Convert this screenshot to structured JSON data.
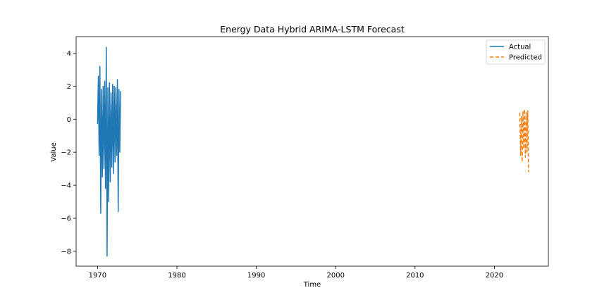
{
  "chart_data": {
    "type": "line",
    "title": "Energy Data Hybrid ARIMA-LSTM Forecast",
    "xlabel": "Time",
    "ylabel": "Value",
    "xlim": [
      1967.3,
      2026.8
    ],
    "ylim": [
      -8.9,
      5.0
    ],
    "x_ticks": [
      1970,
      1980,
      1990,
      2000,
      2010,
      2020
    ],
    "x_tick_labels": [
      "1970",
      "1980",
      "1990",
      "2000",
      "2010",
      "2020"
    ],
    "y_ticks": [
      4,
      2,
      0,
      -2,
      -4,
      -6,
      -8
    ],
    "y_tick_labels": [
      "4",
      "2",
      "0",
      "−2",
      "−4",
      "−6",
      "−8"
    ],
    "grid": false,
    "legend_position": "top-right",
    "series": [
      {
        "name": "Actual",
        "color": "#1f77b4",
        "style": "solid",
        "x": [
          1970.0,
          1970.1,
          1970.2,
          1970.3,
          1970.4,
          1970.5,
          1970.6,
          1970.7,
          1970.8,
          1970.9,
          1971.0,
          1971.1,
          1971.2,
          1971.3,
          1971.4,
          1971.5,
          1971.6,
          1971.7,
          1971.8,
          1971.9,
          1972.0,
          1972.1,
          1972.2,
          1972.3,
          1972.4,
          1972.5,
          1972.6,
          1972.7,
          1972.8,
          1972.9
        ],
        "y": [
          -0.3,
          2.6,
          -2.2,
          3.2,
          -5.7,
          1.8,
          -3.5,
          2.0,
          -3.0,
          2.3,
          -4.2,
          4.35,
          -8.3,
          1.9,
          -5.0,
          2.2,
          -3.8,
          1.6,
          -2.9,
          2.1,
          -3.3,
          2.0,
          -2.6,
          1.9,
          -2.2,
          2.4,
          -5.6,
          1.8,
          -2.0,
          1.7
        ]
      },
      {
        "name": "Predicted",
        "color": "#ff7f0e",
        "style": "dashed",
        "x": [
          2023.2,
          2023.3,
          2023.4,
          2023.5,
          2023.6,
          2023.7,
          2023.8,
          2023.9,
          2024.0,
          2024.1,
          2024.2,
          2024.3
        ],
        "y": [
          0.4,
          -2.2,
          0.2,
          -2.6,
          0.5,
          -1.8,
          0.6,
          -2.3,
          0.4,
          -2.0,
          0.5,
          -3.2
        ]
      }
    ]
  }
}
